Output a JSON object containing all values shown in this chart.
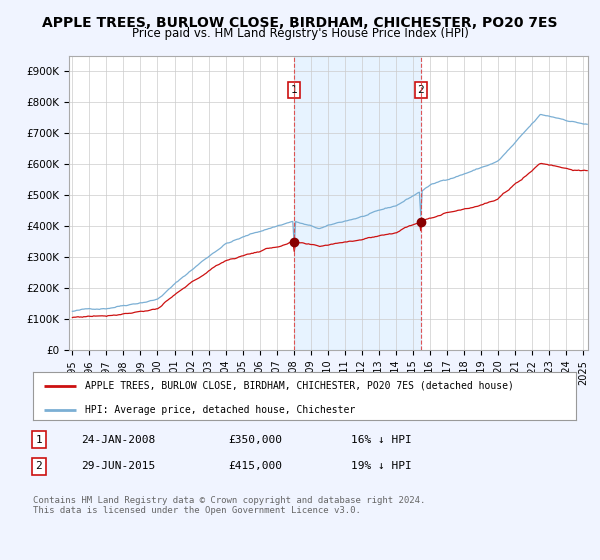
{
  "title": "APPLE TREES, BURLOW CLOSE, BIRDHAM, CHICHESTER, PO20 7ES",
  "subtitle": "Price paid vs. HM Land Registry's House Price Index (HPI)",
  "ylabel_ticks": [
    "£0",
    "£100K",
    "£200K",
    "£300K",
    "£400K",
    "£500K",
    "£600K",
    "£700K",
    "£800K",
    "£900K"
  ],
  "ytick_values": [
    0,
    100000,
    200000,
    300000,
    400000,
    500000,
    600000,
    700000,
    800000,
    900000
  ],
  "ylim": [
    0,
    950000
  ],
  "xlim_start": 1994.8,
  "xlim_end": 2025.3,
  "hpi_color": "#7bafd4",
  "price_color": "#cc1111",
  "purchase1_x": 2008.07,
  "purchase1_y": 350000,
  "purchase1_label": "1",
  "purchase2_x": 2015.5,
  "purchase2_y": 415000,
  "purchase2_label": "2",
  "legend_line1": "APPLE TREES, BURLOW CLOSE, BIRDHAM, CHICHESTER, PO20 7ES (detached house)",
  "legend_line2": "HPI: Average price, detached house, Chichester",
  "table_row1": [
    "1",
    "24-JAN-2008",
    "£350,000",
    "16% ↓ HPI"
  ],
  "table_row2": [
    "2",
    "29-JUN-2015",
    "£415,000",
    "19% ↓ HPI"
  ],
  "footer": "Contains HM Land Registry data © Crown copyright and database right 2024.\nThis data is licensed under the Open Government Licence v3.0.",
  "background_color": "#f0f4ff",
  "plot_bg_color": "#ffffff",
  "shade_color": "#ddeeff",
  "grid_color": "#cccccc",
  "title_fontsize": 10,
  "subtitle_fontsize": 9
}
